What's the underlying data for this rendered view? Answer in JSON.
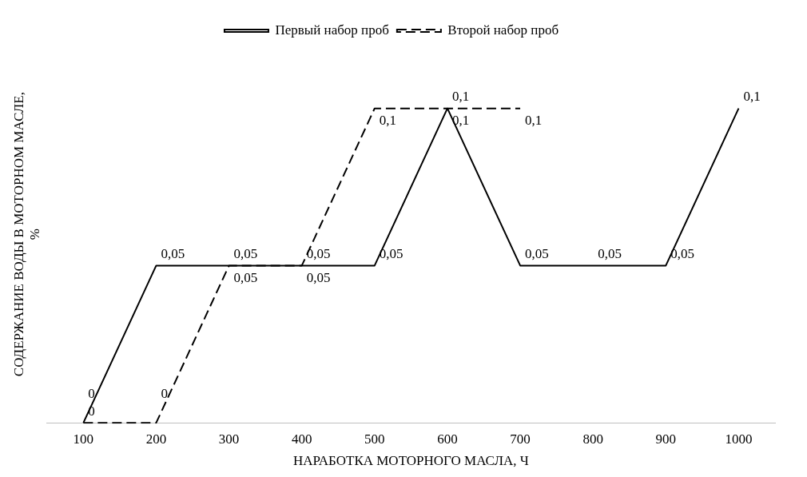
{
  "chart_data": {
    "type": "line",
    "xlabel": "НАРАБОТКА МОТОРНОГО МАСЛА, Ч",
    "ylabel": "СОДЕРЖАНИЕ ВОДЫ В МОТОРНОМ МАСЛЕ, %",
    "categories": [
      "100",
      "200",
      "300",
      "400",
      "500",
      "600",
      "700",
      "800",
      "900",
      "1000"
    ],
    "series": [
      {
        "name": "Первый набор проб",
        "color": "#000000",
        "line_style": "solid",
        "values": [
          0,
          0.05,
          0.05,
          0.05,
          0.05,
          0.1,
          0.05,
          0.05,
          0.05,
          0.1
        ],
        "value_labels": [
          "0",
          "0,05",
          "0,05",
          "0,05",
          "0,05",
          "0,1",
          "0,05",
          "0,05",
          "0,05",
          "0,1"
        ]
      },
      {
        "name": "Второй набор проб",
        "color": "#000000",
        "line_style": "dashed",
        "values": [
          0,
          0,
          0.05,
          0.05,
          0.1,
          0.1,
          0.1,
          null,
          null,
          null
        ],
        "value_labels": [
          "0",
          "0",
          "0,05",
          "0,05",
          "0,1",
          "0,1",
          "0,1",
          null,
          null,
          null
        ]
      }
    ],
    "legend": "top",
    "grid": false,
    "marker": "none",
    "tick_labels": "x"
  }
}
